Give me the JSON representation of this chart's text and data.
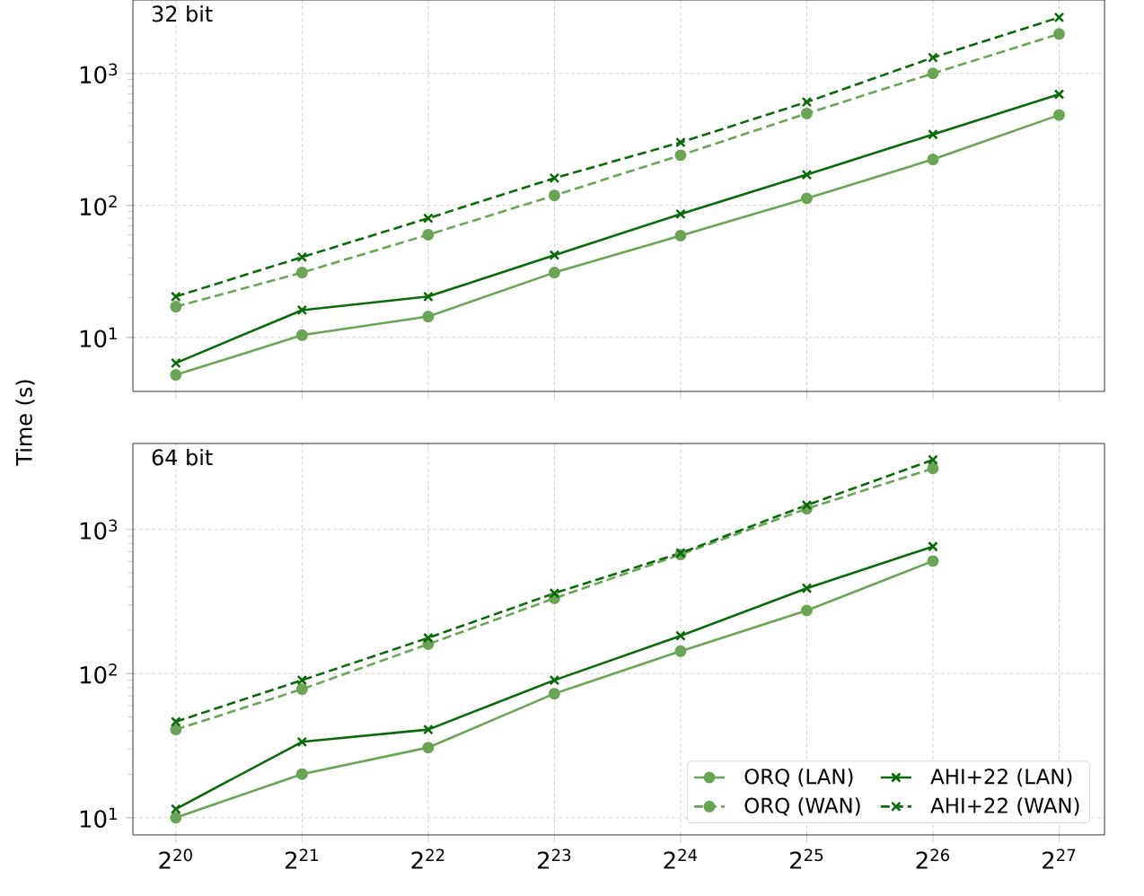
{
  "chart_data": [
    {
      "type": "line",
      "title": "32 bit",
      "ylabel": "Time (s)",
      "log": "xy",
      "grid": true,
      "legend": false,
      "tick_labels": "y",
      "x": [
        1048576,
        2097152,
        4194304,
        8388608,
        16777216,
        33554432,
        67108864,
        134217728
      ],
      "xlim": [
        828400,
        172254000
      ],
      "xticks": [
        {
          "value": 1048576,
          "label": null
        },
        {
          "value": 2097152,
          "label": null
        },
        {
          "value": 4194304,
          "label": null
        },
        {
          "value": 8388608,
          "label": null
        },
        {
          "value": 16777216,
          "label": null
        },
        {
          "value": 33554432,
          "label": null
        },
        {
          "value": 67108864,
          "label": null
        },
        {
          "value": 134217728,
          "label": null
        }
      ],
      "ylim": [
        3.9,
        3600
      ],
      "yticks": [
        {
          "value": 10,
          "label": "10$^{1}$"
        },
        {
          "value": 100,
          "label": "10$^{2}$"
        },
        {
          "value": 1000,
          "label": "10$^{3}$"
        }
      ],
      "series": [
        {
          "color": "#6aa556",
          "marker": "circle",
          "line_style": "solid",
          "values": [
            5.2,
            10.4,
            14.4,
            31,
            59,
            113,
            223,
            484
          ]
        },
        {
          "color": "#6aa556",
          "marker": "circle",
          "line_style": "dashed",
          "values": [
            17.1,
            31,
            60,
            119,
            240,
            497,
            1000,
            1990
          ]
        },
        {
          "color": "#0a6a0a",
          "marker": "cross",
          "line_style": "solid",
          "values": [
            6.4,
            16.1,
            20.4,
            42,
            86,
            171,
            345,
            695
          ]
        },
        {
          "color": "#0a6a0a",
          "marker": "cross",
          "line_style": "dashed",
          "values": [
            20.4,
            40.6,
            80,
            161,
            300,
            607,
            1318,
            2655
          ]
        }
      ]
    },
    {
      "type": "line",
      "title": "64 bit",
      "log": "xy",
      "grid": true,
      "legend": "bottom right",
      "x": [
        1048576,
        2097152,
        4194304,
        8388608,
        16777216,
        33554432,
        67108864
      ],
      "xlim": [
        828400,
        172254000
      ],
      "xticks": [
        {
          "value": 1048576,
          "label": "2$^{20}$"
        },
        {
          "value": 2097152,
          "label": "2$^{21}$"
        },
        {
          "value": 4194304,
          "label": "2$^{22}$"
        },
        {
          "value": 8388608,
          "label": "2$^{23}$"
        },
        {
          "value": 16777216,
          "label": "2$^{24}$"
        },
        {
          "value": 33554432,
          "label": "2$^{25}$"
        },
        {
          "value": 67108864,
          "label": "2$^{26}$"
        },
        {
          "value": 134217728,
          "label": "2$^{27}$"
        }
      ],
      "ylim": [
        7.6,
        3950
      ],
      "yticks": [
        {
          "value": 10,
          "label": "10$^{1}$"
        },
        {
          "value": 100,
          "label": "10$^{2}$"
        },
        {
          "value": 1000,
          "label": "10$^{3}$"
        }
      ],
      "series": [
        {
          "name": "ORQ (LAN)",
          "color": "#6aa556",
          "marker": "circle",
          "line_style": "solid",
          "values": [
            10,
            20.1,
            30.7,
            72.6,
            143,
            274,
            604
          ]
        },
        {
          "name": "ORQ (WAN)",
          "color": "#6aa556",
          "marker": "circle",
          "line_style": "dashed",
          "values": [
            40.9,
            78,
            160,
            333,
            670,
            1394,
            2650
          ]
        },
        {
          "name": "AHI+22 (LAN)",
          "color": "#0a6a0a",
          "marker": "cross",
          "line_style": "solid",
          "values": [
            11.5,
            33.6,
            40.9,
            90,
            183,
            391,
            761
          ]
        },
        {
          "name": "AHI+22 (WAN)",
          "color": "#0a6a0a",
          "marker": "cross",
          "line_style": "dashed",
          "values": [
            46.4,
            90,
            177,
            361,
            686,
            1475,
            3040
          ]
        }
      ]
    }
  ]
}
